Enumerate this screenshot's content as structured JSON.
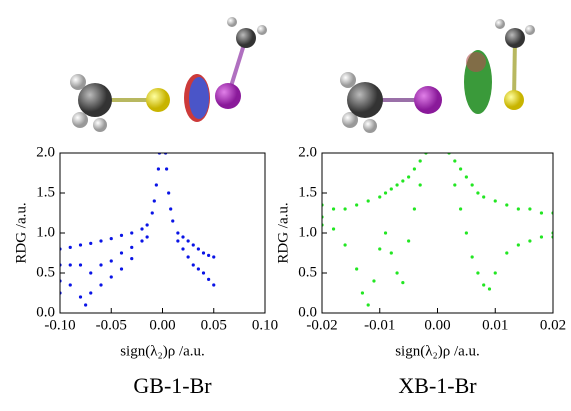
{
  "chart_data": [
    {
      "type": "scatter",
      "caption": "GB-1-Br",
      "xlabel": "sign(λ₂)ρ /a.u.",
      "ylabel": "RDG /a.u.",
      "color": "#0a14e6",
      "xlim": [
        -0.1,
        0.1
      ],
      "ylim": [
        0,
        2
      ],
      "xticks": [
        {
          "value": -0.1,
          "label": "-0.10"
        },
        -0.05,
        {
          "value": 0,
          "label": "0.00"
        },
        0.05,
        {
          "value": 0.1,
          "label": "0.10"
        }
      ],
      "yticks": [
        {
          "value": 0,
          "label": "0.0"
        },
        0.5,
        {
          "value": 1,
          "label": "1.0"
        },
        1.5,
        {
          "value": 2,
          "label": "2.0"
        }
      ],
      "x": [
        -0.003,
        -0.004,
        -0.006,
        -0.008,
        -0.01,
        0.003,
        0.004,
        0.006,
        0.008,
        0.01,
        -0.1,
        -0.1,
        -0.1,
        -0.1,
        -0.09,
        -0.09,
        -0.09,
        -0.08,
        -0.08,
        -0.08,
        -0.075,
        -0.07,
        -0.07,
        -0.07,
        -0.06,
        -0.06,
        -0.06,
        -0.05,
        -0.05,
        -0.05,
        -0.04,
        -0.04,
        -0.04,
        -0.03,
        -0.03,
        -0.03,
        -0.02,
        -0.02,
        -0.015,
        -0.015,
        0.015,
        0.015,
        0.02,
        0.02,
        0.025,
        0.025,
        0.03,
        0.03,
        0.035,
        0.035,
        0.04,
        0.04,
        0.045,
        0.045,
        0.05,
        0.05
      ],
      "values": [
        2.0,
        1.8,
        1.6,
        1.4,
        1.25,
        2.0,
        1.8,
        1.5,
        1.3,
        1.15,
        0.8,
        0.6,
        0.4,
        0.25,
        0.82,
        0.6,
        0.35,
        0.85,
        0.6,
        0.2,
        0.1,
        0.87,
        0.5,
        0.25,
        0.9,
        0.6,
        0.35,
        0.93,
        0.65,
        0.45,
        0.97,
        0.75,
        0.55,
        1.0,
        0.82,
        0.68,
        1.05,
        0.9,
        1.1,
        0.95,
        1.0,
        0.9,
        0.95,
        0.8,
        0.9,
        0.7,
        0.85,
        0.6,
        0.8,
        0.55,
        0.75,
        0.5,
        0.72,
        0.42,
        0.7,
        0.35
      ]
    },
    {
      "type": "scatter",
      "caption": "XB-1-Br",
      "xlabel": "sign(λ₂)ρ /a.u.",
      "ylabel": "RDG /a.u.",
      "color": "#22e622",
      "xlim": [
        -0.02,
        0.02
      ],
      "ylim": [
        0,
        2
      ],
      "xticks": [
        -0.02,
        -0.01,
        {
          "value": 0,
          "label": "0.00"
        },
        0.01,
        0.02
      ],
      "yticks": [
        {
          "value": 0,
          "label": "0.0"
        },
        0.5,
        {
          "value": 1,
          "label": "1.0"
        },
        1.5,
        {
          "value": 2,
          "label": "2.0"
        }
      ],
      "x": [
        -0.02,
        -0.02,
        -0.02,
        -0.018,
        -0.018,
        -0.016,
        -0.016,
        -0.014,
        -0.014,
        -0.013,
        -0.012,
        -0.012,
        -0.011,
        -0.01,
        -0.01,
        -0.009,
        -0.009,
        -0.008,
        -0.008,
        -0.007,
        -0.007,
        -0.006,
        -0.006,
        -0.005,
        -0.005,
        -0.004,
        -0.004,
        -0.003,
        -0.003,
        -0.002,
        0.002,
        0.003,
        0.003,
        0.004,
        0.004,
        0.005,
        0.005,
        0.006,
        0.006,
        0.007,
        0.007,
        0.008,
        0.008,
        0.009,
        0.01,
        0.01,
        0.012,
        0.012,
        0.014,
        0.014,
        0.016,
        0.016,
        0.018,
        0.018,
        0.02,
        0.02,
        0.02
      ],
      "values": [
        1.35,
        1.2,
        1.1,
        1.3,
        1.05,
        1.3,
        0.85,
        1.35,
        0.55,
        0.25,
        0.1,
        1.4,
        0.4,
        1.45,
        0.8,
        1.5,
        1.0,
        1.55,
        0.75,
        1.6,
        0.5,
        0.38,
        1.65,
        1.7,
        0.9,
        1.8,
        1.3,
        1.9,
        1.6,
        2.0,
        2.0,
        1.9,
        1.6,
        1.8,
        1.3,
        1.7,
        1.0,
        1.6,
        0.7,
        1.5,
        0.5,
        1.45,
        0.35,
        0.3,
        1.4,
        0.5,
        1.35,
        0.75,
        1.3,
        0.85,
        1.3,
        0.9,
        1.25,
        0.95,
        1.25,
        1.0,
        0.95
      ]
    }
  ]
}
